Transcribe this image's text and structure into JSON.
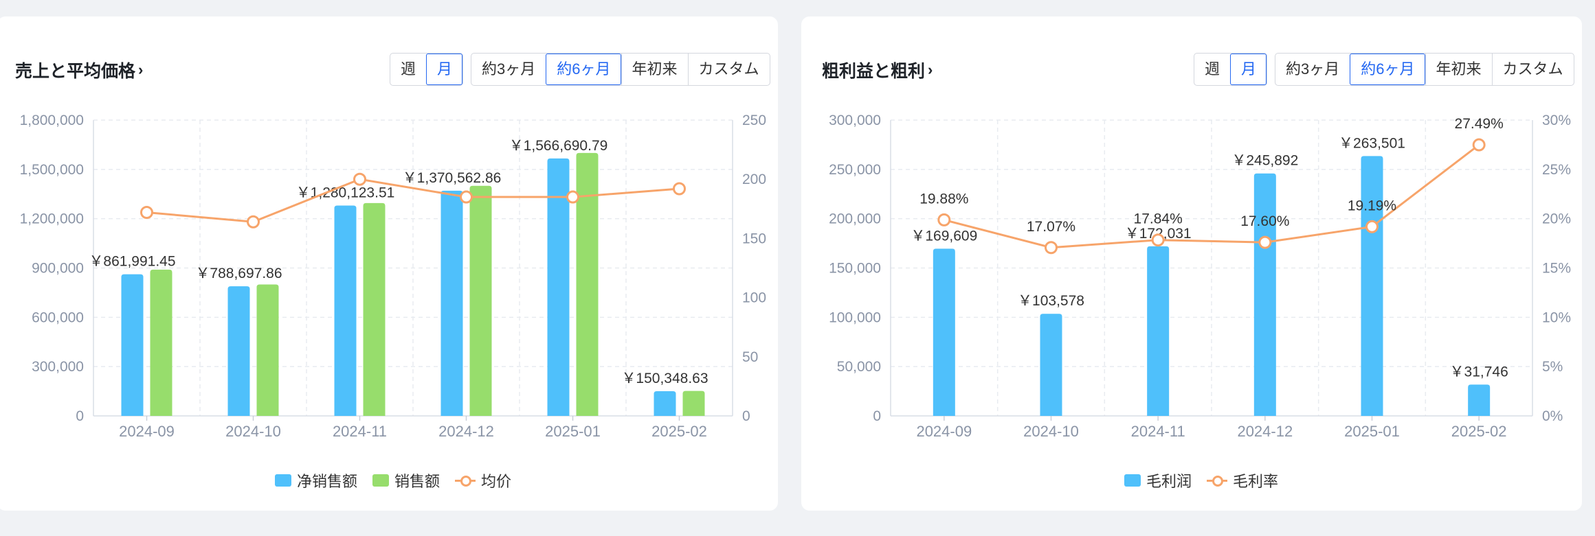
{
  "colors": {
    "blue": "#4fc0fb",
    "green": "#97dd6c",
    "orange": "#f7a46a",
    "accent": "#2468f2"
  },
  "left": {
    "title": "売上と平均価格",
    "period_tabs": [
      "週",
      "月"
    ],
    "period_active": "月",
    "range_tabs": [
      "約3ヶ月",
      "約6ヶ月",
      "年初来",
      "カスタム"
    ],
    "range_active": "約6ヶ月",
    "legend": [
      "净销售额",
      "销售额",
      "均价"
    ]
  },
  "right": {
    "title": "粗利益と粗利",
    "period_tabs": [
      "週",
      "月"
    ],
    "period_active": "月",
    "range_tabs": [
      "約3ヶ月",
      "約6ヶ月",
      "年初来",
      "カスタム"
    ],
    "range_active": "約6ヶ月",
    "legend": [
      "毛利润",
      "毛利率"
    ]
  },
  "chart_data": [
    {
      "type": "bar",
      "categories": [
        "2024-09",
        "2024-10",
        "2024-11",
        "2024-12",
        "2025-01",
        "2025-02"
      ],
      "y_left": {
        "min": 0,
        "max": 1800000,
        "ticks": [
          "0",
          "300,000",
          "600,000",
          "900,000",
          "1,200,000",
          "1,500,000",
          "1,800,000"
        ]
      },
      "y_right": {
        "min": 0,
        "max": 250,
        "ticks": [
          "0",
          "50",
          "100",
          "150",
          "200",
          "250"
        ]
      },
      "grid": true,
      "legend_position": "bottom",
      "series": [
        {
          "name": "净销售额",
          "kind": "bar",
          "axis": "left",
          "color": "#4fc0fb",
          "values": [
            861991.45,
            788697.86,
            1280123.51,
            1370562.86,
            1566690.79,
            150348.63
          ],
          "labels": [
            "￥861,991.45",
            "￥788,697.86",
            "￥1,280,123.51",
            "￥1,370,562.86",
            "￥1,566,690.79",
            "￥150,348.63"
          ]
        },
        {
          "name": "销售额",
          "kind": "bar",
          "axis": "left",
          "color": "#97dd6c",
          "values": [
            890000,
            800000,
            1295000,
            1400000,
            1600000,
            152000
          ]
        },
        {
          "name": "均价",
          "kind": "line",
          "axis": "right",
          "color": "#f7a46a",
          "values": [
            172,
            164,
            200,
            185,
            185,
            192
          ]
        }
      ]
    },
    {
      "type": "bar",
      "categories": [
        "2024-09",
        "2024-10",
        "2024-11",
        "2024-12",
        "2025-01",
        "2025-02"
      ],
      "y_left": {
        "min": 0,
        "max": 300000,
        "ticks": [
          "0",
          "50,000",
          "100,000",
          "150,000",
          "200,000",
          "250,000",
          "300,000"
        ]
      },
      "y_right": {
        "min": 0,
        "max": 30,
        "ticks": [
          "0%",
          "5%",
          "10%",
          "15%",
          "20%",
          "25%",
          "30%"
        ]
      },
      "grid": true,
      "legend_position": "bottom",
      "series": [
        {
          "name": "毛利润",
          "kind": "bar",
          "axis": "left",
          "color": "#4fc0fb",
          "values": [
            169609,
            103578,
            172031,
            245892,
            263501,
            31746
          ],
          "labels": [
            "￥169,609",
            "￥103,578",
            "￥172,031",
            "￥245,892",
            "￥263,501",
            "￥31,746"
          ]
        },
        {
          "name": "毛利率",
          "kind": "line",
          "axis": "right",
          "color": "#f7a46a",
          "values": [
            19.88,
            17.07,
            17.84,
            17.6,
            19.19,
            27.49
          ],
          "labels": [
            "19.88%",
            "17.07%",
            "17.84%",
            "17.60%",
            "19.19%",
            "27.49%"
          ]
        }
      ]
    }
  ]
}
